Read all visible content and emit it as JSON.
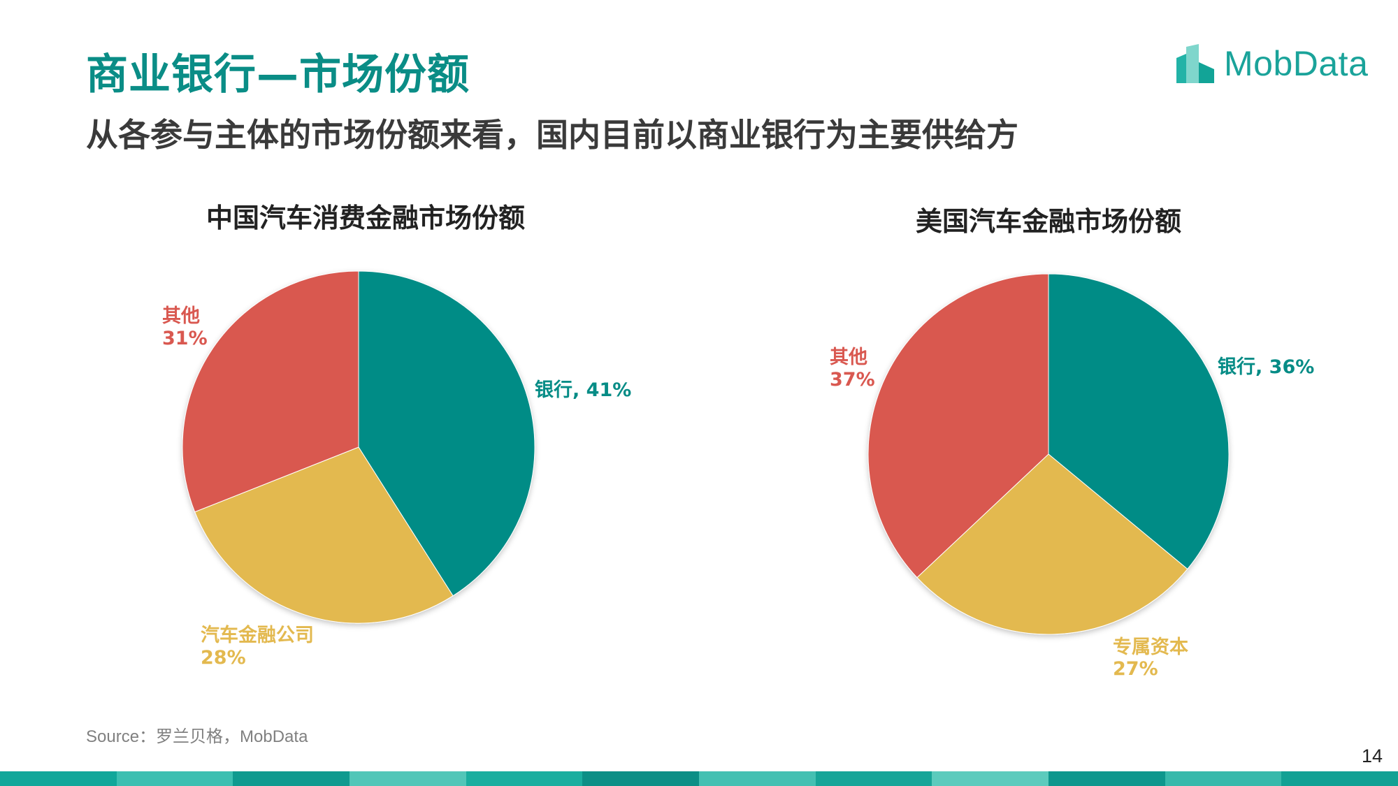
{
  "header": {
    "title": "商业银行—市场份额",
    "subtitle": "从各参与主体的市场份额来看，国内目前以商业银行为主要供给方"
  },
  "logo": {
    "text": "MobData",
    "icon": "mobdata-building-logo-icon"
  },
  "colors": {
    "title": "#0a8d86",
    "bank": "#068c86",
    "finance": "#e3b94f",
    "other": "#d95850"
  },
  "chart_data": [
    {
      "type": "pie",
      "title": "中国汽车消费金融市场份额",
      "slices": [
        {
          "name": "银行",
          "value": 41,
          "label": "银行, 41%",
          "color": "#068c86"
        },
        {
          "name": "汽车金融公司",
          "value": 28,
          "label_name": "汽车金融公司",
          "label_value": "28%",
          "color": "#e3b94f"
        },
        {
          "name": "其他",
          "value": 31,
          "label_name": "其他",
          "label_value": "31%",
          "color": "#d95850"
        }
      ]
    },
    {
      "type": "pie",
      "title": "美国汽车金融市场份额",
      "slices": [
        {
          "name": "银行",
          "value": 36,
          "label": "银行, 36%",
          "color": "#068c86"
        },
        {
          "name": "专属资本",
          "value": 27,
          "label_name": "专属资本",
          "label_value": "27%",
          "color": "#e3b94f"
        },
        {
          "name": "其他",
          "value": 37,
          "label_name": "其他",
          "label_value": "37%",
          "color": "#d95850"
        }
      ]
    }
  ],
  "footer": {
    "source": "Source：罗兰贝格，MobData",
    "page_number": "14"
  }
}
